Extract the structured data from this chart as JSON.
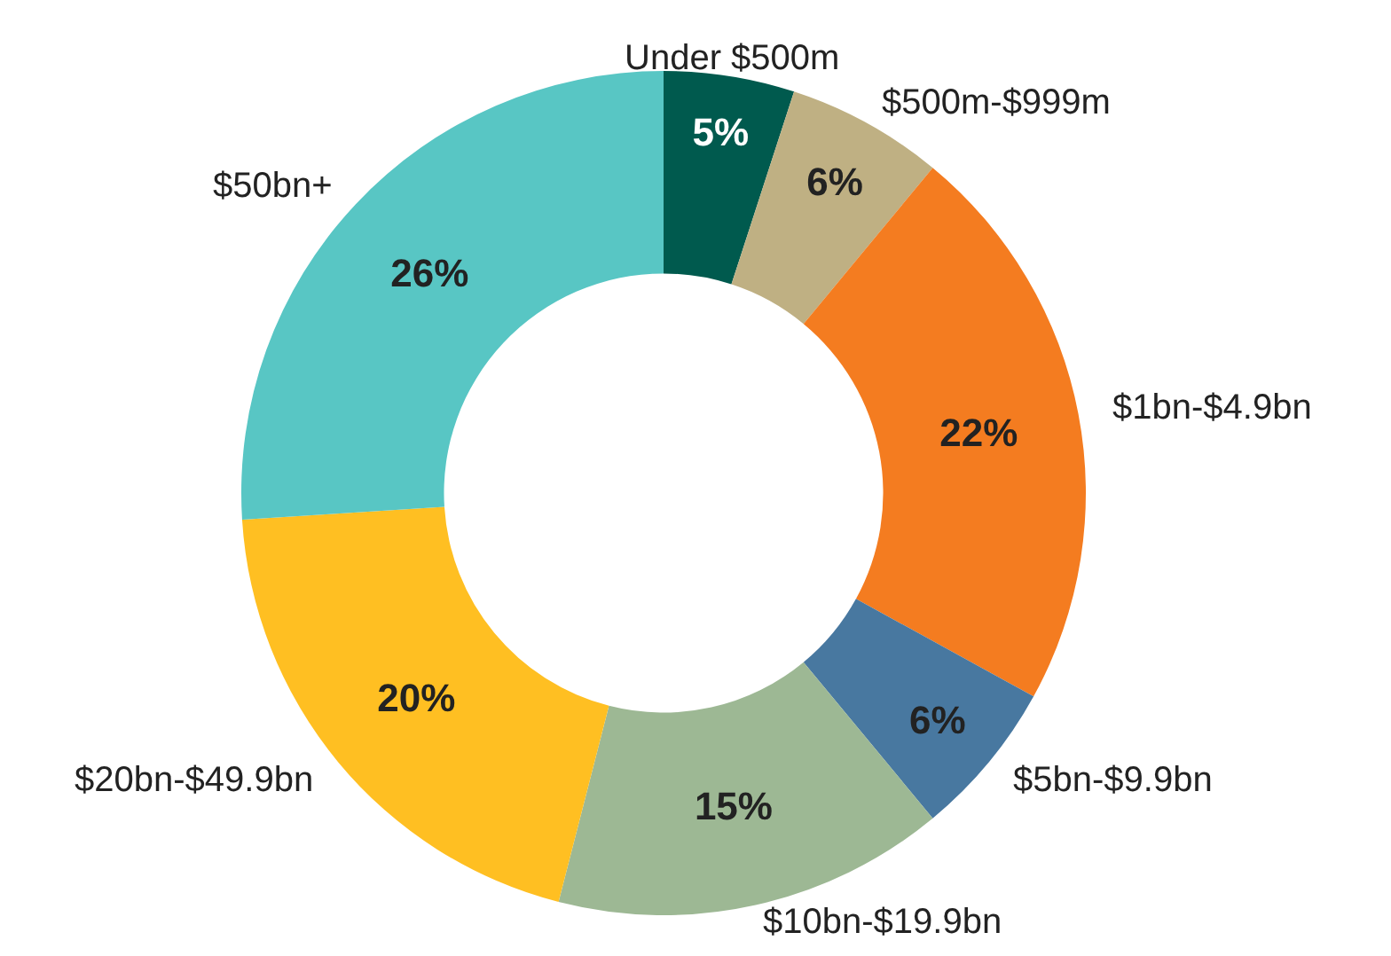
{
  "chart_data": {
    "type": "donut",
    "categories": [
      "Under $500m",
      "$500m-$999m",
      "$1bn-$4.9bn",
      "$5bn-$9.9bn",
      "$10bn-$19.9bn",
      "$20bn-$49.9bn",
      "$50bn+"
    ],
    "values": [
      5,
      6,
      22,
      6,
      15,
      20,
      26
    ],
    "colors": [
      "#005a4e",
      "#bfb083",
      "#f47c20",
      "#4878a0",
      "#9db894",
      "#ffbf22",
      "#58c6c4"
    ],
    "value_labels": [
      "5%",
      "6%",
      "22%",
      "6%",
      "15%",
      "20%",
      "26%"
    ],
    "legend": false
  }
}
